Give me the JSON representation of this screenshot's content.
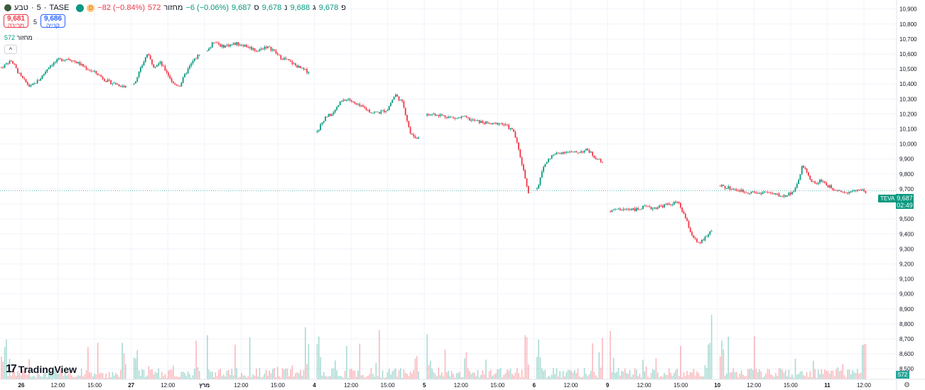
{
  "header": {
    "symbol": "טבע",
    "interval": "5",
    "exchange": "TASE",
    "data_badge": "D",
    "change": "−82 (−0.84%)",
    "volume_label": "מחזור",
    "volume_value": "572",
    "change2": "−6 (−0.06%)",
    "close_label": "ס",
    "close_value": "9,687",
    "low_label": "נ",
    "low_value": "9,678",
    "high_label": "ג",
    "high_value": "9,688",
    "open_label": "פ",
    "open_value": "9,678",
    "logo_icon": "teva-logo-icon",
    "colors": {
      "up": "#089981",
      "down": "#f23645",
      "buy": "#2962ff"
    }
  },
  "quote": {
    "sell_price": "9,681",
    "sell_label": "מכירה",
    "spread": "5",
    "buy_price": "9,686",
    "buy_label": "קנייה"
  },
  "volume_row": {
    "label": "מחזור",
    "value": "572"
  },
  "collapse_icon": "chevron-up-icon",
  "brand": "TradingView",
  "last_price": {
    "symbol": "TEVA",
    "price": "9,687",
    "countdown": "02:49"
  },
  "volume_badge": "572",
  "settings_icon": "gear-icon",
  "chart_data": {
    "type": "candlestick",
    "y_ticks": [
      10900,
      10800,
      10700,
      10600,
      10500,
      10400,
      10300,
      10200,
      10100,
      10000,
      9900,
      9800,
      9700,
      9600,
      9500,
      9400,
      9300,
      9200,
      9100,
      9000,
      8900,
      8800,
      8700,
      8600,
      8500
    ],
    "y_tick_labels": [
      "10,900",
      "10,800",
      "10,700",
      "10,600",
      "10,500",
      "10,400",
      "10,300",
      "10,200",
      "10,100",
      "10,000",
      "9,900",
      "9,800",
      "9,700",
      "9,600",
      "9,500",
      "9,400",
      "9,300",
      "9,200",
      "9,100",
      "9,000",
      "8,900",
      "8,800",
      "8,700",
      "8,600",
      "8,500"
    ],
    "ylim": [
      8430,
      10960
    ],
    "x_tick_labels": [
      "26",
      "12:00",
      "15:00",
      "27",
      "12:00",
      "מרץ",
      "12:00",
      "15:00",
      "4",
      "12:00",
      "15:00",
      "5",
      "12:00",
      "15:00",
      "6",
      "12:00",
      "9",
      "12:00",
      "15:00",
      "10",
      "12:00",
      "15:00",
      "11",
      "12:00"
    ],
    "x_tick_bold": [
      true,
      false,
      false,
      true,
      false,
      true,
      false,
      false,
      true,
      false,
      false,
      true,
      false,
      false,
      true,
      false,
      true,
      false,
      false,
      true,
      false,
      false,
      true,
      false
    ],
    "last_price_value": 9687,
    "grid": true,
    "legend": "none",
    "sessions": [
      {
        "label": "26",
        "path": [
          10510,
          10560,
          10450,
          10380,
          10430,
          10520,
          10560,
          10570,
          10540,
          10500,
          10470,
          10420,
          10400,
          10380
        ]
      },
      {
        "label": "27",
        "path": [
          10400,
          10500,
          10600,
          10520,
          10540,
          10480,
          10400,
          10390,
          10480,
          10550,
          10600
        ]
      },
      {
        "label": "מרץ",
        "path": [
          10620,
          10690,
          10650,
          10660,
          10670,
          10660,
          10640,
          10620,
          10650,
          10630,
          10580,
          10560,
          10530,
          10500,
          10480
        ]
      },
      {
        "label": "4",
        "path": [
          10080,
          10180,
          10200,
          10280,
          10300,
          10260,
          10240,
          10210,
          10210,
          10230,
          10330,
          10270,
          10060,
          10040
        ]
      },
      {
        "label": "5",
        "path": [
          10190,
          10200,
          10190,
          10180,
          10170,
          10180,
          10160,
          10150,
          10140,
          10130,
          10140,
          10120,
          10080,
          9890,
          9680
        ]
      },
      {
        "label": "6",
        "path": [
          9700,
          9860,
          9920,
          9940,
          9950,
          9940,
          9950,
          9960,
          9910,
          9880
        ]
      },
      {
        "label": "9",
        "path": [
          9550,
          9560,
          9560,
          9570,
          9560,
          9580,
          9570,
          9580,
          9590,
          9600,
          9610,
          9520,
          9400,
          9330,
          9370,
          9420
        ]
      },
      {
        "label": "10",
        "path": [
          9720,
          9710,
          9700,
          9690,
          9680,
          9680,
          9670,
          9680,
          9670,
          9660,
          9650,
          9670,
          9700,
          9860,
          9780,
          9730,
          9760,
          9720,
          9700,
          9690,
          9670,
          9700,
          9690,
          9680
        ]
      }
    ],
    "volume": "per-candle volume histogram (no axis values printed)"
  }
}
